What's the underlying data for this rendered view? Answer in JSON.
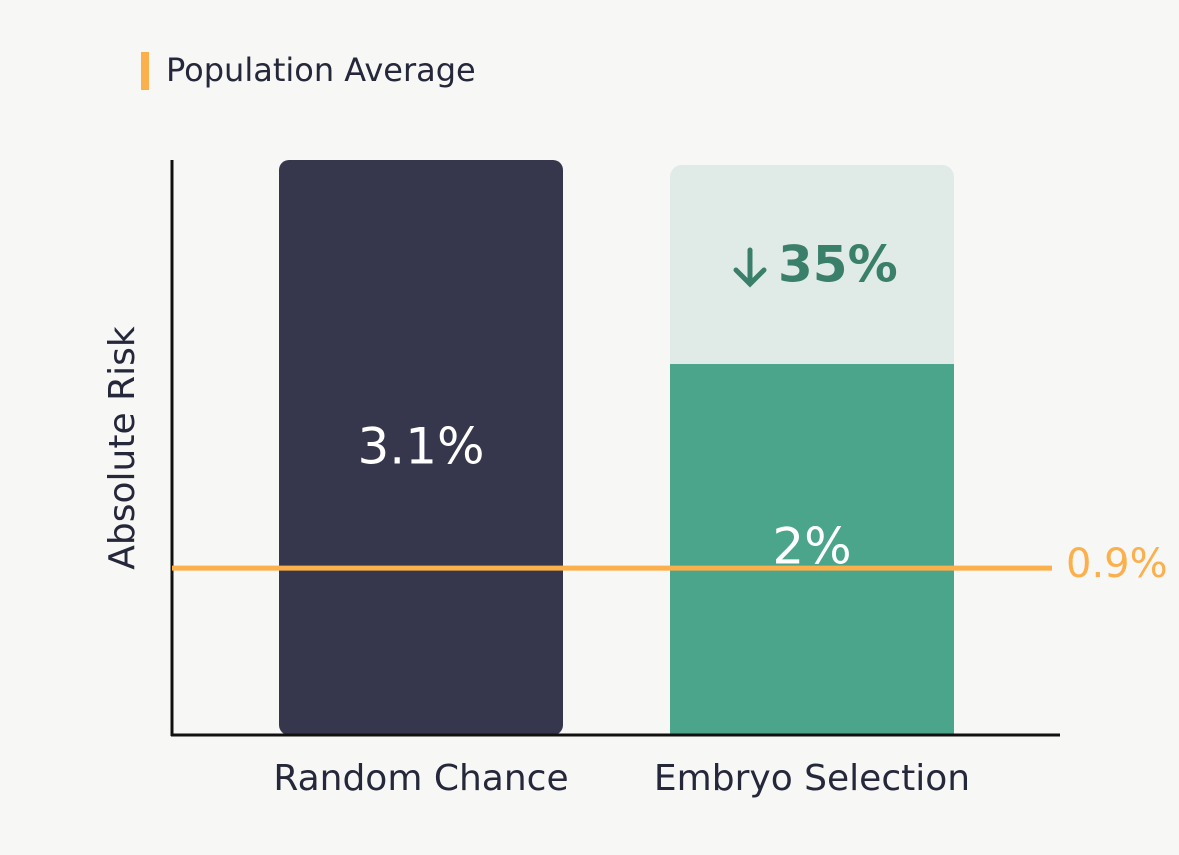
{
  "chart_data": {
    "type": "bar",
    "ylabel": "Absolute Risk",
    "categories": [
      "Random Chance",
      "Embryo Selection"
    ],
    "values": [
      3.1,
      2
    ],
    "value_labels": [
      "3.1%",
      "2%"
    ],
    "colors": [
      "#36374d",
      "#4aa58b"
    ],
    "ghost_color": "#e0ebe7",
    "annotation": "35%",
    "annotation_color": "#3a7f69",
    "reference_line": {
      "name": "Population Average",
      "value": 0.9,
      "label": "0.9%",
      "color": "#fbb04c"
    },
    "ylim": [
      0,
      3.1
    ]
  }
}
